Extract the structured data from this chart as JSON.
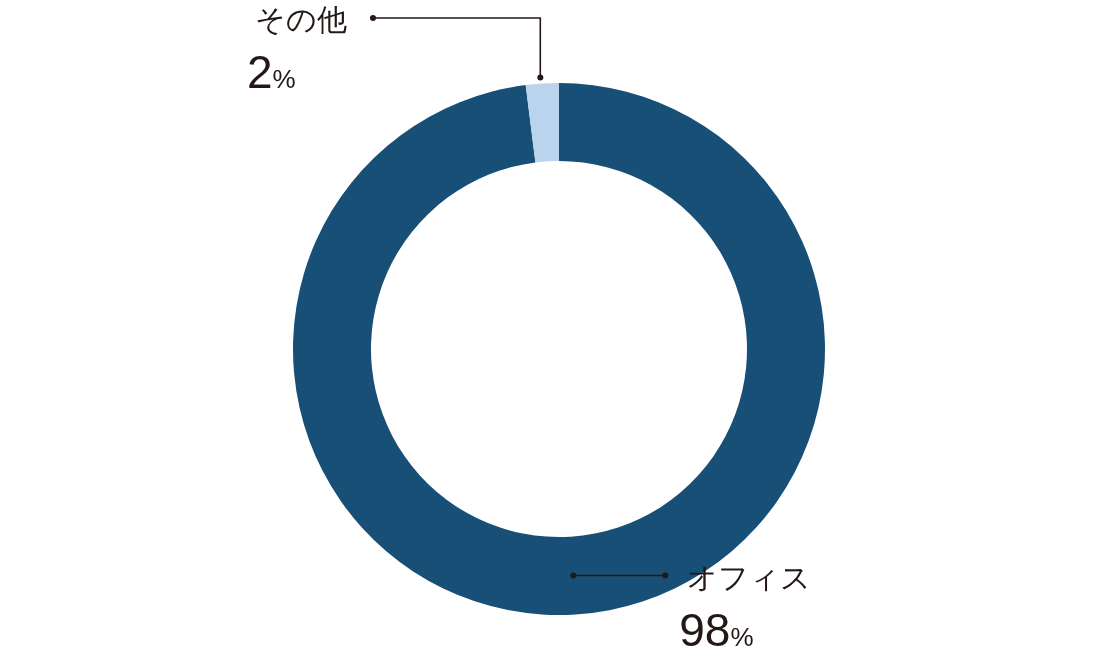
{
  "chart_data": {
    "type": "donut",
    "categories": [
      "オフィス",
      "その他"
    ],
    "values": [
      98,
      2
    ],
    "colors": [
      "#184f76",
      "#bad4ee"
    ],
    "value_labels": [
      "98%",
      "2%"
    ]
  }
}
